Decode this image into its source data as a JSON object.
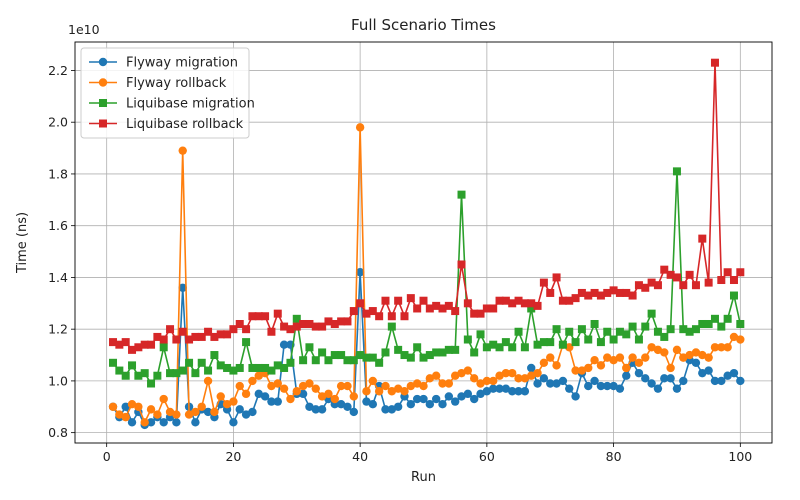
{
  "chart_data": {
    "type": "line",
    "title": "Full Scenario Times",
    "xlabel": "Run",
    "ylabel": "Time (ns)",
    "y_scale_label": "1e10",
    "xlim": [
      -5,
      105
    ],
    "ylim": [
      0.76,
      2.31
    ],
    "xticks": [
      0,
      20,
      40,
      60,
      80,
      100
    ],
    "yticks": [
      0.8,
      1.0,
      1.2,
      1.4,
      1.6,
      1.8,
      2.0,
      2.2
    ],
    "grid": true,
    "legend_position": "upper-left",
    "x": [
      1,
      2,
      3,
      4,
      5,
      6,
      7,
      8,
      9,
      10,
      11,
      12,
      13,
      14,
      15,
      16,
      17,
      18,
      19,
      20,
      21,
      22,
      23,
      24,
      25,
      26,
      27,
      28,
      29,
      30,
      31,
      32,
      33,
      34,
      35,
      36,
      37,
      38,
      39,
      40,
      41,
      42,
      43,
      44,
      45,
      46,
      47,
      48,
      49,
      50,
      51,
      52,
      53,
      54,
      55,
      56,
      57,
      58,
      59,
      60,
      61,
      62,
      63,
      64,
      65,
      66,
      67,
      68,
      69,
      70,
      71,
      72,
      73,
      74,
      75,
      76,
      77,
      78,
      79,
      80,
      81,
      82,
      83,
      84,
      85,
      86,
      87,
      88,
      89,
      90,
      91,
      92,
      93,
      94,
      95,
      96,
      97,
      98,
      99,
      100
    ],
    "series": [
      {
        "name": "Flyway migration",
        "color": "#1f77b4",
        "marker": "circle",
        "values": [
          0.9,
          0.86,
          0.9,
          0.84,
          0.88,
          0.83,
          0.84,
          0.86,
          0.84,
          0.86,
          0.84,
          1.36,
          0.9,
          0.84,
          0.89,
          0.88,
          0.86,
          0.91,
          0.89,
          0.84,
          0.89,
          0.87,
          0.88,
          0.95,
          0.94,
          0.92,
          0.92,
          1.14,
          1.14,
          0.95,
          0.95,
          0.9,
          0.89,
          0.89,
          0.93,
          0.91,
          0.91,
          0.9,
          0.88,
          1.42,
          0.92,
          0.91,
          0.98,
          0.89,
          0.89,
          0.9,
          0.94,
          0.91,
          0.93,
          0.93,
          0.91,
          0.93,
          0.91,
          0.94,
          0.92,
          0.94,
          0.95,
          0.93,
          0.95,
          0.96,
          0.97,
          0.97,
          0.97,
          0.96,
          0.96,
          0.96,
          1.05,
          0.99,
          1.01,
          0.99,
          0.99,
          1.0,
          0.97,
          0.94,
          1.03,
          0.98,
          1.0,
          0.98,
          0.98,
          0.98,
          0.97,
          1.02,
          1.07,
          1.03,
          1.01,
          0.99,
          0.97,
          1.01,
          1.01,
          0.97,
          1.0,
          1.08,
          1.07,
          1.03,
          1.04,
          1.0,
          1.0,
          1.02,
          1.03,
          1.0
        ]
      },
      {
        "name": "Flyway rollback",
        "color": "#ff7f0e",
        "marker": "circle",
        "values": [
          0.9,
          0.87,
          0.86,
          0.91,
          0.9,
          0.84,
          0.89,
          0.87,
          0.93,
          0.88,
          0.87,
          1.89,
          0.87,
          0.88,
          0.9,
          1.0,
          0.88,
          0.94,
          0.91,
          0.92,
          0.98,
          0.95,
          1.0,
          1.02,
          1.03,
          0.98,
          0.99,
          0.97,
          0.93,
          0.96,
          0.98,
          0.99,
          0.97,
          0.94,
          0.95,
          0.93,
          0.98,
          0.98,
          0.94,
          1.98,
          0.96,
          1.0,
          0.96,
          0.98,
          0.96,
          0.97,
          0.96,
          0.98,
          0.99,
          0.98,
          1.01,
          1.02,
          0.99,
          0.99,
          1.02,
          1.03,
          1.04,
          1.01,
          0.99,
          1.0,
          1.0,
          1.02,
          1.03,
          1.03,
          1.01,
          1.01,
          1.02,
          1.03,
          1.07,
          1.09,
          1.06,
          1.14,
          1.13,
          1.04,
          1.04,
          1.05,
          1.08,
          1.06,
          1.09,
          1.08,
          1.09,
          1.05,
          1.09,
          1.07,
          1.09,
          1.13,
          1.12,
          1.11,
          1.05,
          1.12,
          1.09,
          1.1,
          1.11,
          1.1,
          1.09,
          1.13,
          1.13,
          1.13,
          1.17,
          1.16
        ]
      },
      {
        "name": "Liquibase migration",
        "color": "#2ca02c",
        "marker": "square",
        "values": [
          1.07,
          1.04,
          1.02,
          1.06,
          1.02,
          1.03,
          0.99,
          1.02,
          1.13,
          1.03,
          1.03,
          1.04,
          1.07,
          1.03,
          1.07,
          1.04,
          1.1,
          1.06,
          1.05,
          1.04,
          1.05,
          1.15,
          1.05,
          1.05,
          1.05,
          1.04,
          1.06,
          1.05,
          1.07,
          1.24,
          1.08,
          1.13,
          1.08,
          1.11,
          1.08,
          1.1,
          1.1,
          1.08,
          1.08,
          1.1,
          1.09,
          1.09,
          1.07,
          1.11,
          1.21,
          1.12,
          1.1,
          1.09,
          1.13,
          1.09,
          1.1,
          1.11,
          1.11,
          1.12,
          1.12,
          1.72,
          1.16,
          1.11,
          1.18,
          1.13,
          1.14,
          1.13,
          1.15,
          1.13,
          1.19,
          1.13,
          1.28,
          1.14,
          1.15,
          1.15,
          1.2,
          1.14,
          1.19,
          1.15,
          1.2,
          1.16,
          1.22,
          1.15,
          1.19,
          1.16,
          1.19,
          1.18,
          1.21,
          1.16,
          1.21,
          1.26,
          1.19,
          1.17,
          1.2,
          1.81,
          1.2,
          1.19,
          1.2,
          1.22,
          1.22,
          1.24,
          1.21,
          1.24,
          1.33,
          1.22
        ]
      },
      {
        "name": "Liquibase rollback",
        "color": "#d62728",
        "marker": "square",
        "values": [
          1.15,
          1.14,
          1.15,
          1.12,
          1.13,
          1.14,
          1.14,
          1.17,
          1.16,
          1.2,
          1.16,
          1.19,
          1.16,
          1.17,
          1.17,
          1.19,
          1.17,
          1.18,
          1.18,
          1.2,
          1.22,
          1.2,
          1.25,
          1.25,
          1.25,
          1.19,
          1.26,
          1.21,
          1.2,
          1.21,
          1.22,
          1.22,
          1.21,
          1.21,
          1.23,
          1.22,
          1.23,
          1.23,
          1.27,
          1.3,
          1.26,
          1.27,
          1.25,
          1.31,
          1.25,
          1.31,
          1.25,
          1.32,
          1.28,
          1.31,
          1.28,
          1.29,
          1.28,
          1.29,
          1.27,
          1.45,
          1.3,
          1.26,
          1.26,
          1.28,
          1.28,
          1.31,
          1.31,
          1.3,
          1.31,
          1.3,
          1.3,
          1.29,
          1.38,
          1.34,
          1.4,
          1.31,
          1.31,
          1.32,
          1.34,
          1.33,
          1.34,
          1.33,
          1.34,
          1.35,
          1.34,
          1.34,
          1.33,
          1.37,
          1.36,
          1.38,
          1.37,
          1.43,
          1.41,
          1.4,
          1.37,
          1.41,
          1.37,
          1.55,
          1.38,
          2.23,
          1.39,
          1.42,
          1.39,
          1.42
        ]
      }
    ]
  }
}
